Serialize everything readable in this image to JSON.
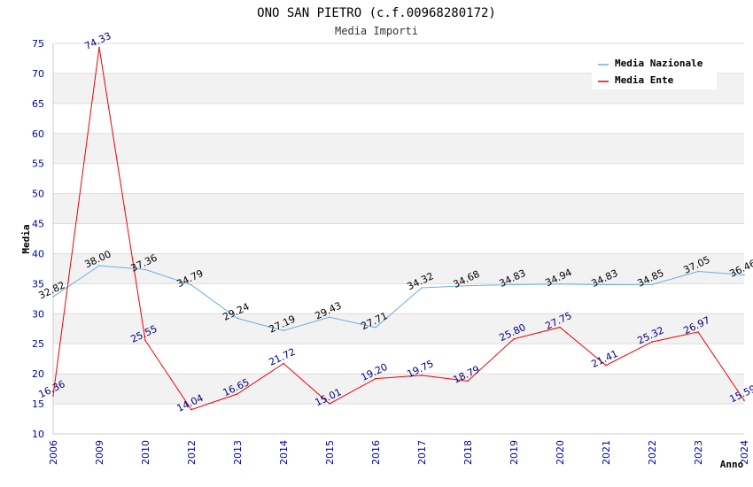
{
  "chart_data": {
    "type": "line",
    "title": "ONO SAN PIETRO (c.f.00968280172)",
    "subtitle": "Media Importi",
    "xlabel": "Anno",
    "ylabel": "Media",
    "ylim": [
      10,
      75
    ],
    "yticks": [
      10,
      15,
      20,
      25,
      30,
      35,
      40,
      45,
      50,
      55,
      60,
      65,
      70,
      75
    ],
    "categories": [
      "2006",
      "2009",
      "2010",
      "2012",
      "2013",
      "2014",
      "2015",
      "2016",
      "2017",
      "2018",
      "2019",
      "2020",
      "2021",
      "2022",
      "2023",
      "2024"
    ],
    "legend_position": "top-right",
    "series": [
      {
        "name": "Media Nazionale",
        "color": "#6aaee8",
        "values": [
          32.82,
          38.0,
          37.36,
          34.79,
          29.24,
          27.19,
          29.43,
          27.71,
          34.32,
          34.68,
          34.83,
          34.94,
          34.83,
          34.85,
          37.05,
          36.46
        ],
        "labels": [
          "32.82",
          "38.00",
          "37.36",
          "34.79",
          "29.24",
          "27.19",
          "29.43",
          "27.71",
          "34.32",
          "34.68",
          "34.83",
          "34.94",
          "34.83",
          "34.85",
          "37.05",
          "36.46"
        ]
      },
      {
        "name": "Media Ente",
        "color": "#ee0000",
        "values": [
          16.36,
          74.33,
          25.55,
          14.04,
          16.65,
          21.72,
          15.01,
          19.2,
          19.75,
          18.79,
          25.8,
          27.75,
          21.41,
          25.32,
          26.97,
          15.59
        ],
        "labels": [
          "16.36",
          "74.33",
          "25.55",
          "14.04",
          "16.65",
          "21.72",
          "15.01",
          "19.20",
          "19.75",
          "18.79",
          "25.80",
          "27.75",
          "21.41",
          "25.32",
          "26.97",
          "15.59"
        ]
      }
    ]
  }
}
